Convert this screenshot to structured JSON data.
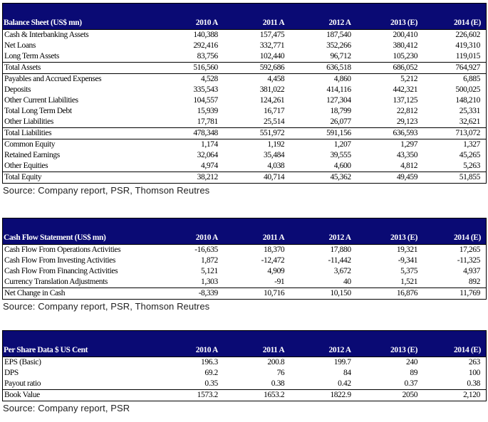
{
  "balance_sheet": {
    "headers": [
      "Balance Sheet (US$ mn)",
      "2010 A",
      "2011 A",
      "2012 A",
      "2013 (E)",
      "2014 (E)"
    ],
    "rows": [
      {
        "cells": [
          "Cash & Interbanking Assets",
          "140,388",
          "157,475",
          "187,540",
          "200,410",
          "226,602"
        ]
      },
      {
        "cells": [
          "Net Loans",
          "292,416",
          "332,771",
          "352,266",
          "380,412",
          "419,310"
        ]
      },
      {
        "cells": [
          "Long Term Assets",
          "83,756",
          "102,440",
          "96,712",
          "105,230",
          "119,015"
        ],
        "border": true
      },
      {
        "cells": [
          "Total Assets",
          "516,560",
          "592,686",
          "636,518",
          "686,052",
          "764,927"
        ],
        "border": true
      },
      {
        "cells": [
          "Payables and Accrued Expenses",
          "4,528",
          "4,458",
          "4,860",
          "5,212",
          "6,885"
        ]
      },
      {
        "cells": [
          "Deposits",
          "335,543",
          "381,022",
          "414,116",
          "442,321",
          "500,025"
        ]
      },
      {
        "cells": [
          "Other Current Liabilities",
          "104,557",
          "124,261",
          "127,304",
          "137,125",
          "148,210"
        ]
      },
      {
        "cells": [
          "Total Long Term Debt",
          "15,939",
          "16,717",
          "18,799",
          "22,812",
          "25,331"
        ]
      },
      {
        "cells": [
          "Other Liabilities",
          "17,781",
          "25,514",
          "26,077",
          "29,123",
          "32,621"
        ],
        "border": true
      },
      {
        "cells": [
          "Total Liabilities",
          "478,348",
          "551,972",
          "591,156",
          "636,593",
          "713,072"
        ],
        "border": true
      },
      {
        "cells": [
          "Common Equity",
          "1,174",
          "1,192",
          "1,207",
          "1,297",
          "1,327"
        ]
      },
      {
        "cells": [
          "Retained Earnings",
          "32,064",
          "35,484",
          "39,555",
          "43,350",
          "45,265"
        ]
      },
      {
        "cells": [
          "Other Equities",
          "4,974",
          "4,038",
          "4,600",
          "4,812",
          "5,263"
        ],
        "border": true
      },
      {
        "cells": [
          "Total Equity",
          "38,212",
          "40,714",
          "45,362",
          "49,459",
          "51,855"
        ],
        "border": true
      }
    ],
    "source": "Source: Company report, PSR, Thomson Reutres"
  },
  "cash_flow": {
    "headers": [
      "Cash Flow Statement (US$ mn)",
      "2010 A",
      "2011 A",
      "2012 A",
      "2013 (E)",
      "2014 (E)"
    ],
    "rows": [
      {
        "cells": [
          "Cash Flow From Operations Activities",
          "-16,635",
          "18,370",
          "17,880",
          "19,321",
          "17,265"
        ]
      },
      {
        "cells": [
          "Cash Flow From Investing Activities",
          "1,872",
          "-12,472",
          "-11,442",
          "-9,341",
          "-11,325"
        ]
      },
      {
        "cells": [
          "Cash Flow From Financing Activities",
          "5,121",
          "4,909",
          "3,672",
          "5,375",
          "4,937"
        ]
      },
      {
        "cells": [
          "Currency Translation Adjustments",
          "1,303",
          "-91",
          "40",
          "1,521",
          "892"
        ],
        "border": true
      },
      {
        "cells": [
          "Net Change in Cash",
          "-8,339",
          "10,716",
          "10,150",
          "16,876",
          "11,769"
        ],
        "border": true
      }
    ],
    "source": "Source: Company report, PSR, Thomson Reutres"
  },
  "per_share": {
    "headers": [
      "Per Share Data $ US Cent",
      "2010 A",
      "2011 A",
      "2012 A",
      "2013 (E)",
      "2014 (E)"
    ],
    "rows": [
      {
        "cells": [
          "EPS (Basic)",
          "196.3",
          "200.8",
          "199.7",
          "240",
          "263"
        ]
      },
      {
        "cells": [
          "DPS",
          "69.2",
          "76",
          "84",
          "89",
          "100"
        ]
      },
      {
        "cells": [
          "Payout ratio",
          "0.35",
          "0.38",
          "0.42",
          "0.37",
          "0.38"
        ],
        "border": true
      },
      {
        "cells": [
          "Book Value",
          "1573.2",
          "1653.2",
          "1822.9",
          "2050",
          "2,120"
        ],
        "border": true
      }
    ],
    "source": "Source: Company report, PSR"
  }
}
